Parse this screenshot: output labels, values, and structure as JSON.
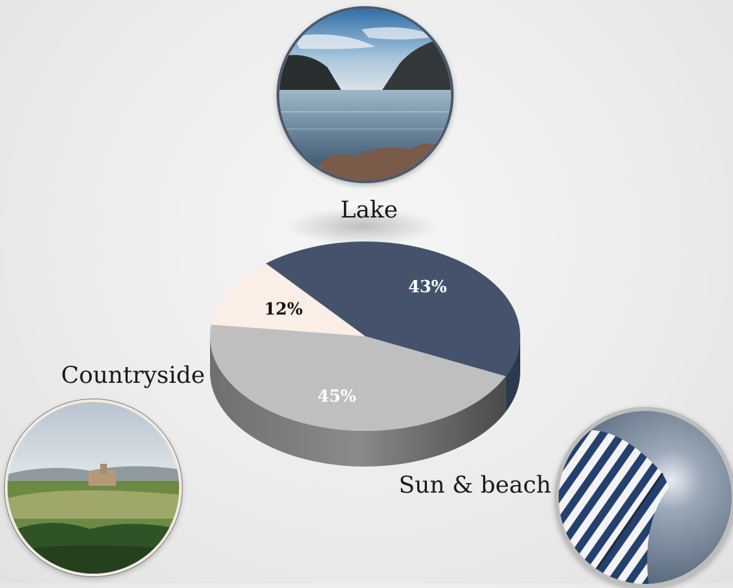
{
  "chart_data": {
    "type": "pie",
    "title": "",
    "categories": [
      "Lake",
      "Sun & beach",
      "Countryside"
    ],
    "values": [
      43,
      45,
      12
    ],
    "value_labels": [
      "43%",
      "45%",
      "12%"
    ],
    "colors": [
      "#44536b",
      "#bfbfbf",
      "#faeee6"
    ],
    "label_colors": [
      "#ffffff",
      "#ffffff",
      "#111111"
    ],
    "style": "3d"
  },
  "labels": {
    "lake": "Lake",
    "countryside": "Countryside",
    "beach": "Sun & beach"
  },
  "photos": {
    "lake": "lake-photo",
    "countryside": "countryside-photo",
    "beach": "beach-umbrella-photo"
  }
}
